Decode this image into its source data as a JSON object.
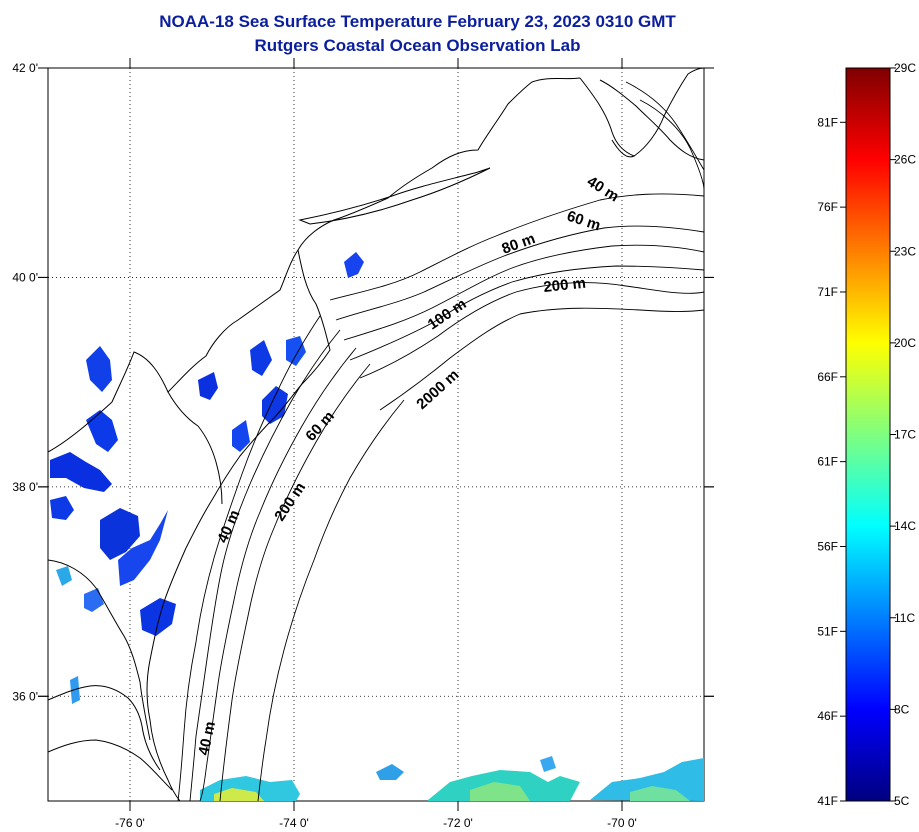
{
  "title": {
    "line1": "NOAA-18 Sea Surface Temperature February 23, 2023 0310 GMT",
    "line2": "Rutgers Coastal Ocean Observation Lab"
  },
  "map": {
    "lon_ticks": [
      "-76 0'",
      "-74 0'",
      "-72 0'",
      "-70 0'"
    ],
    "lat_ticks": [
      "42 0'",
      "40 0'",
      "38 0'",
      "36 0'"
    ],
    "lon_values": [
      -76,
      -74,
      -72,
      -70
    ],
    "lat_values": [
      42,
      40,
      38,
      36
    ],
    "lon_range": [
      -77,
      -69
    ],
    "lat_range": [
      35,
      42
    ],
    "depth_labels": [
      "40 m",
      "60 m",
      "80 m",
      "200 m",
      "100 m",
      "2000 m",
      "60 m",
      "200 m",
      "40 m",
      "40 m"
    ],
    "grid": "dotted"
  },
  "colorbar": {
    "left_labels": [
      "81F",
      "76F",
      "71F",
      "66F",
      "61F",
      "56F",
      "51F",
      "46F",
      "41F"
    ],
    "right_labels": [
      "29C",
      "26C",
      "23C",
      "20C",
      "17C",
      "14C",
      "11C",
      "8C",
      "5C"
    ],
    "colors": [
      "#00007f",
      "#0000ff",
      "#007fff",
      "#00ffff",
      "#7fff7f",
      "#ffff00",
      "#ff7f00",
      "#ff0000",
      "#7f0000"
    ]
  }
}
